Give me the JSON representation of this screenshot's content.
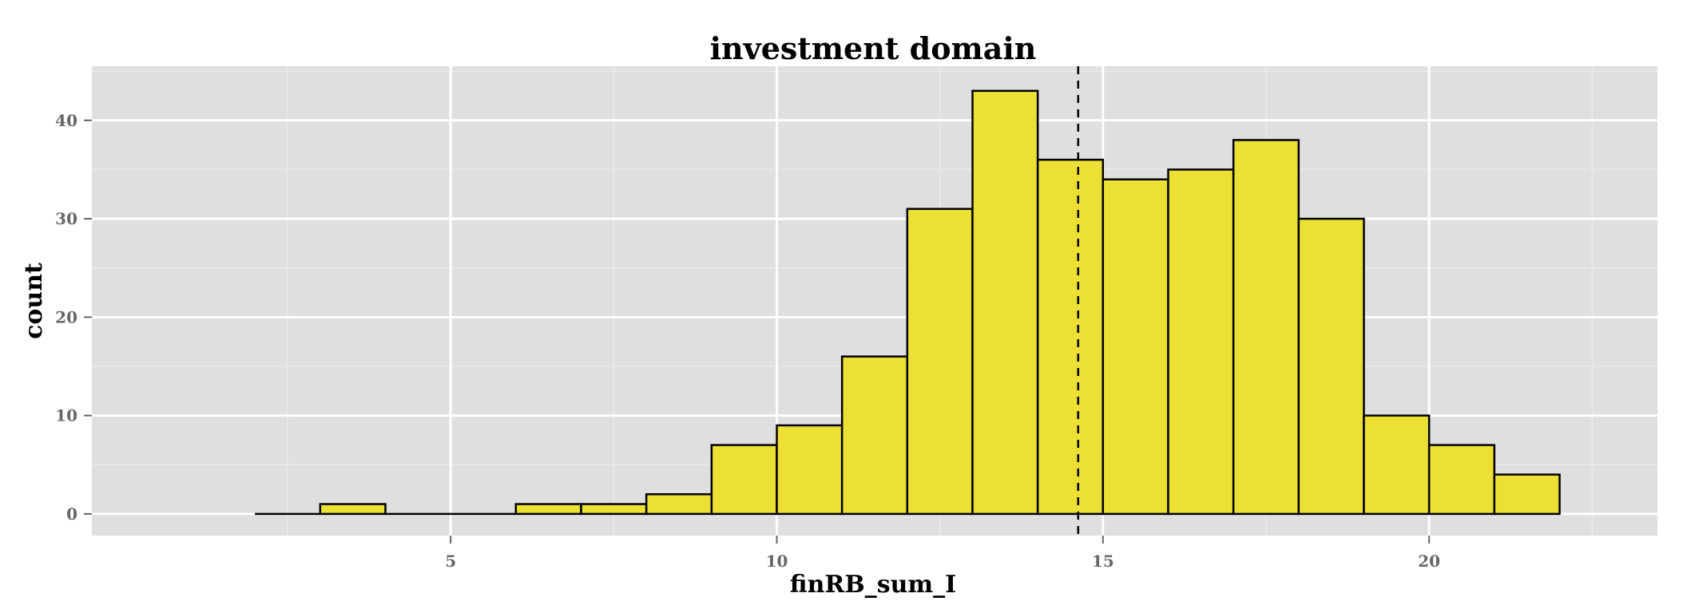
{
  "chart_data": {
    "type": "bar",
    "subtype": "histogram",
    "title": "investment domain",
    "xlabel": "finRB_sum_I",
    "ylabel": "count",
    "xlim": [
      -0.5,
      23.5
    ],
    "ylim": [
      -2.2,
      45.5
    ],
    "x_ticks": [
      5,
      10,
      15,
      20
    ],
    "y_ticks": [
      0,
      10,
      20,
      30,
      40
    ],
    "bin_width": 1,
    "bins": [
      {
        "x0": 2,
        "count": 0
      },
      {
        "x0": 3,
        "count": 1
      },
      {
        "x0": 4,
        "count": 0
      },
      {
        "x0": 5,
        "count": 0
      },
      {
        "x0": 6,
        "count": 1
      },
      {
        "x0": 7,
        "count": 1
      },
      {
        "x0": 8,
        "count": 2
      },
      {
        "x0": 9,
        "count": 7
      },
      {
        "x0": 10,
        "count": 9
      },
      {
        "x0": 11,
        "count": 16
      },
      {
        "x0": 12,
        "count": 31
      },
      {
        "x0": 13,
        "count": 43
      },
      {
        "x0": 14,
        "count": 36
      },
      {
        "x0": 15,
        "count": 34
      },
      {
        "x0": 16,
        "count": 35
      },
      {
        "x0": 17,
        "count": 38
      },
      {
        "x0": 18,
        "count": 30
      },
      {
        "x0": 19,
        "count": 10
      },
      {
        "x0": 20,
        "count": 7
      },
      {
        "x0": 21,
        "count": 4
      }
    ],
    "mean_line": 14.62,
    "grid": true,
    "colors": {
      "bar_fill": "#ECE035",
      "bar_stroke": "#000000",
      "panel_background": "#DFDFDF",
      "grid_major": "#FFFFFF",
      "grid_minor": "#EBEBEB",
      "mean_line": "#000000"
    }
  }
}
